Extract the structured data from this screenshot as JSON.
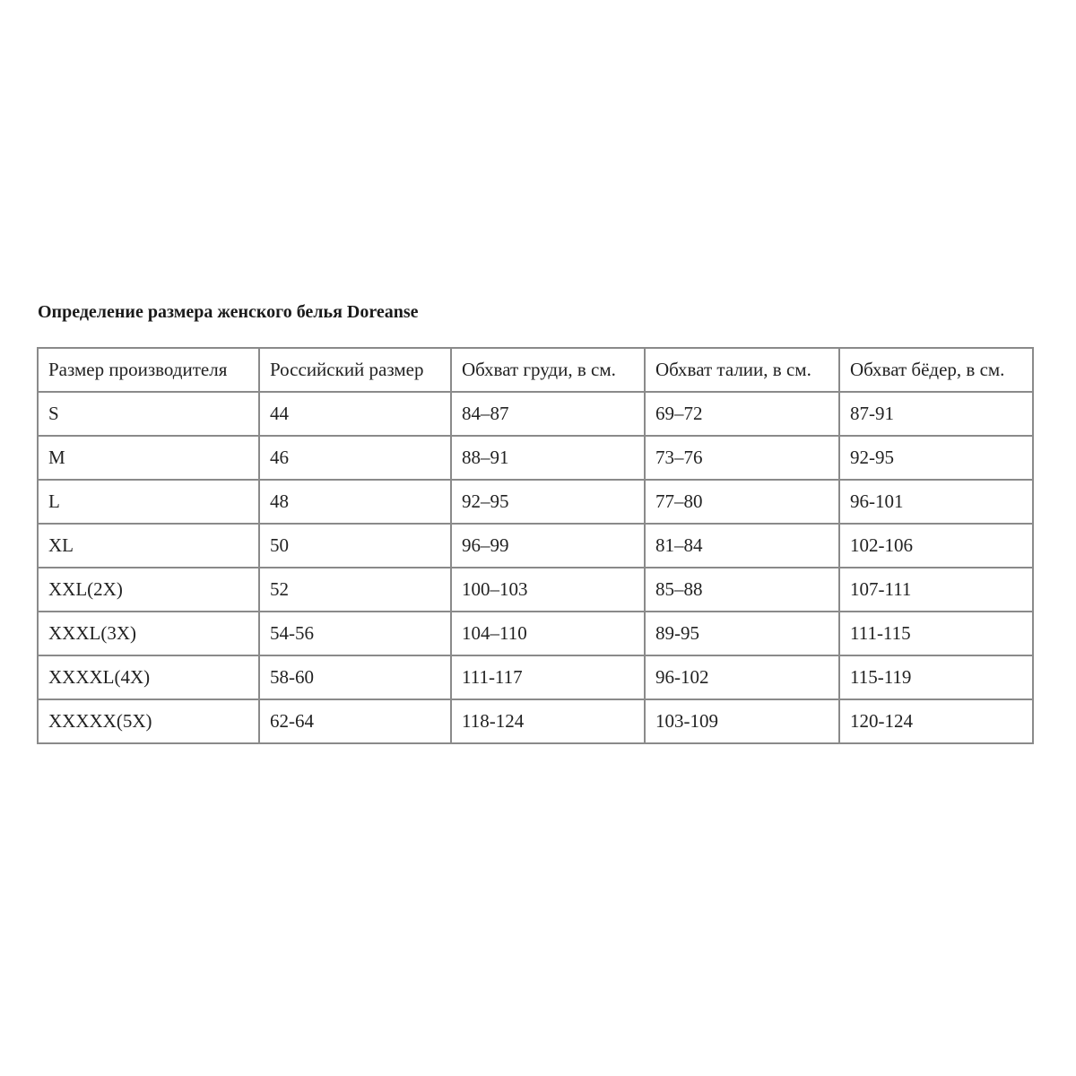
{
  "title": "Определение размера женского белья Doreanse",
  "table": {
    "headers": [
      "Размер производителя",
      "Российский размер",
      "Обхват груди, в см.",
      "Обхват талии, в см.",
      "Обхват бёдер, в см."
    ],
    "rows": [
      [
        "S",
        "44",
        "84–87",
        "69–72",
        "87-91"
      ],
      [
        "M",
        "46",
        "88–91",
        "73–76",
        "92-95"
      ],
      [
        "L",
        "48",
        "92–95",
        "77–80",
        "96-101"
      ],
      [
        "XL",
        "50",
        "96–99",
        "81–84",
        "102-106"
      ],
      [
        "XXL(2X)",
        "52",
        "100–103",
        "85–88",
        "107-111"
      ],
      [
        "XXXL(3X)",
        "54-56",
        "104–110",
        "89-95",
        "111-115"
      ],
      [
        "XXXXL(4X)",
        "58-60",
        "111-117",
        "96-102",
        "115-119"
      ],
      [
        "XXXXX(5X)",
        "62-64",
        "118-124",
        "103-109",
        "120-124"
      ]
    ]
  }
}
